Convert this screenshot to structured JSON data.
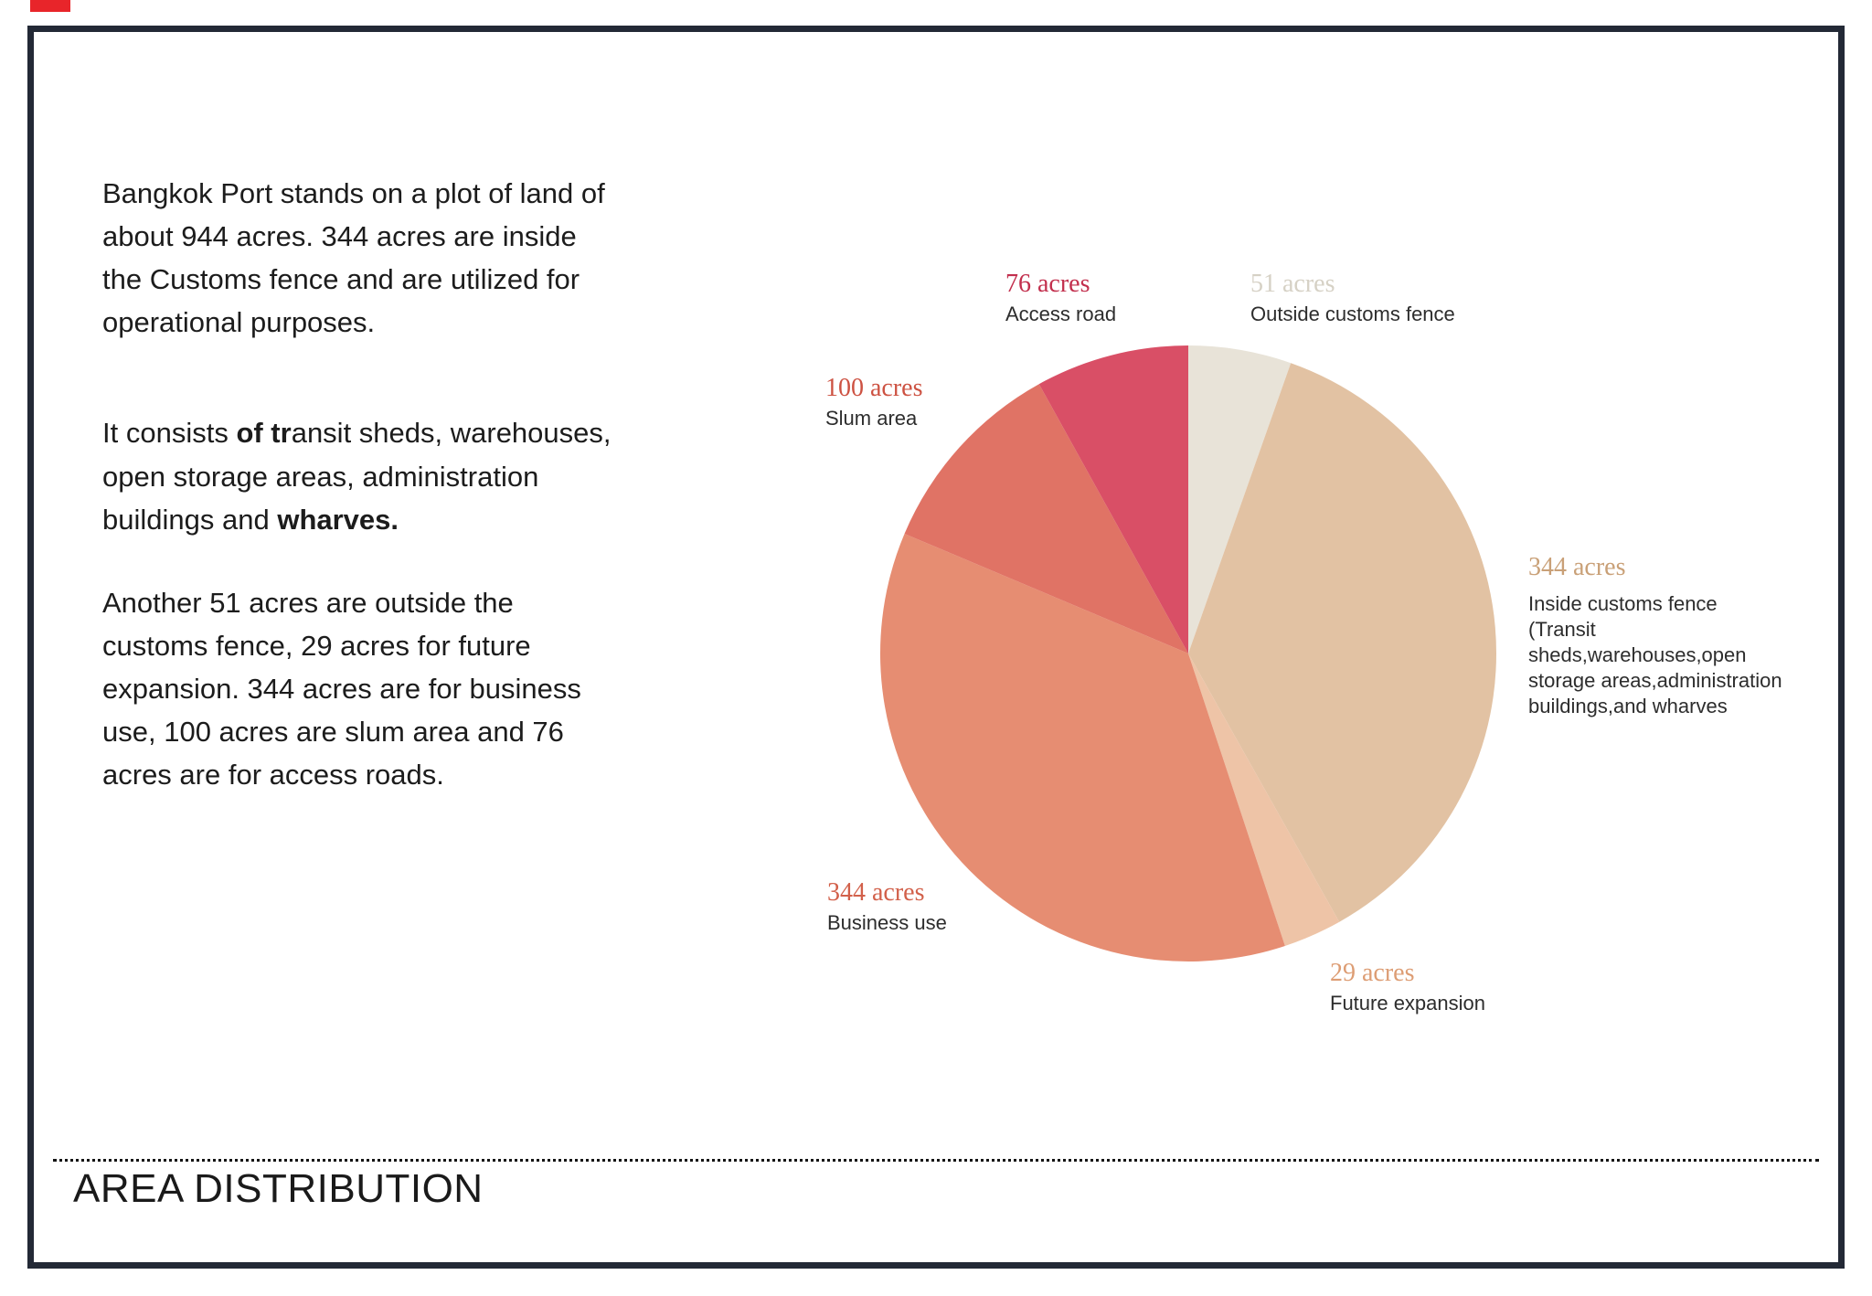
{
  "page": {
    "title": "AREA DISTRIBUTION"
  },
  "paragraphs": {
    "p1": "Bangkok Port stands on a plot of land of about 944 acres. 344 acres are inside the Customs fence and are utilized for operational purposes.",
    "p2_pre": "It consists ",
    "p2_bold1": "of tr",
    "p2_mid": "ansit sheds, warehouses, open storage areas, administration buildings and ",
    "p2_bold2": "wharves.",
    "p3": "Another 51 acres are outside the customs fence, 29 acres for future expansion. 344 acres are for business use, 100 acres are slum area and 76 acres are for access roads."
  },
  "chart_data": {
    "type": "pie",
    "title": "Area distribution of Bangkok Port land (944 acres total)",
    "total_acres": 944,
    "start_angle_deg": 0,
    "direction": "clockwise",
    "slices": [
      {
        "label": "Outside customs fence",
        "value": 51,
        "value_label": "51 acres",
        "color": "#e8e3d8",
        "value_color": "#d6d1c5"
      },
      {
        "label": "Inside customs fence (Transit sheds,warehouses,open storage areas,administration buildings,and wharves",
        "desc": "Inside customs fence\n(Transit\nsheds,warehouses,open\nstorage areas,administration\nbuildings,and wharves",
        "value": 344,
        "value_label": "344 acres",
        "color": "#e2c2a3",
        "value_color": "#c9a077"
      },
      {
        "label": "Future expansion",
        "value": 29,
        "value_label": "29 acres",
        "color": "#eec4a7",
        "value_color": "#dd9d74"
      },
      {
        "label": "Business use",
        "value": 344,
        "value_label": "344 acres",
        "color": "#e68d72",
        "value_color": "#d2604a"
      },
      {
        "label": "Slum area",
        "value": 100,
        "value_label": "100 acres",
        "color": "#e07365",
        "value_color": "#cd5242"
      },
      {
        "label": "Access road",
        "value": 76,
        "value_label": "76 acres",
        "color": "#d94f66",
        "value_color": "#c22f4d"
      }
    ]
  }
}
